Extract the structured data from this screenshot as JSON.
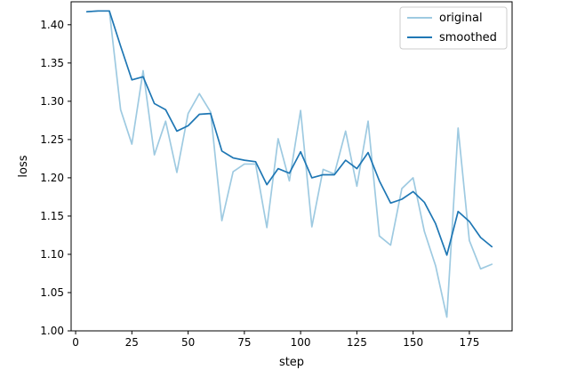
{
  "chart_data": {
    "type": "line",
    "title": "",
    "xlabel": "step",
    "ylabel": "loss",
    "xlim": [
      -2,
      194
    ],
    "ylim": [
      1.0,
      1.43
    ],
    "xticks": [
      0,
      25,
      50,
      75,
      100,
      125,
      150,
      175
    ],
    "xtick_labels": [
      "0",
      "25",
      "50",
      "75",
      "100",
      "125",
      "150",
      "175"
    ],
    "yticks": [
      1.0,
      1.05,
      1.1,
      1.15,
      1.2,
      1.25,
      1.3,
      1.35,
      1.4
    ],
    "ytick_labels": [
      "1.00",
      "1.05",
      "1.10",
      "1.15",
      "1.20",
      "1.25",
      "1.30",
      "1.35",
      "1.40"
    ],
    "grid": false,
    "legend_position": "top-right",
    "x": [
      5,
      10,
      15,
      20,
      25,
      30,
      35,
      40,
      45,
      50,
      55,
      60,
      65,
      70,
      75,
      80,
      85,
      90,
      95,
      100,
      105,
      110,
      115,
      120,
      125,
      130,
      135,
      140,
      145,
      150,
      155,
      160,
      165,
      170,
      175,
      180,
      185
    ],
    "series": [
      {
        "name": "original",
        "color": "#9ecae1",
        "values": [
          1.417,
          1.418,
          1.418,
          1.289,
          1.244,
          1.34,
          1.23,
          1.274,
          1.207,
          1.284,
          1.31,
          1.286,
          1.144,
          1.208,
          1.218,
          1.218,
          1.135,
          1.251,
          1.196,
          1.288,
          1.136,
          1.211,
          1.205,
          1.261,
          1.189,
          1.274,
          1.124,
          1.112,
          1.186,
          1.2,
          1.13,
          1.085,
          1.018,
          1.265,
          1.118,
          1.081,
          1.087
        ]
      },
      {
        "name": "smoothed",
        "color": "#1f77b4",
        "values": [
          1.417,
          1.418,
          1.418,
          1.372,
          1.328,
          1.332,
          1.297,
          1.289,
          1.261,
          1.268,
          1.283,
          1.284,
          1.235,
          1.226,
          1.223,
          1.221,
          1.191,
          1.212,
          1.206,
          1.234,
          1.2,
          1.204,
          1.204,
          1.223,
          1.212,
          1.233,
          1.196,
          1.167,
          1.172,
          1.182,
          1.168,
          1.14,
          1.099,
          1.156,
          1.143,
          1.122,
          1.11
        ]
      }
    ]
  }
}
